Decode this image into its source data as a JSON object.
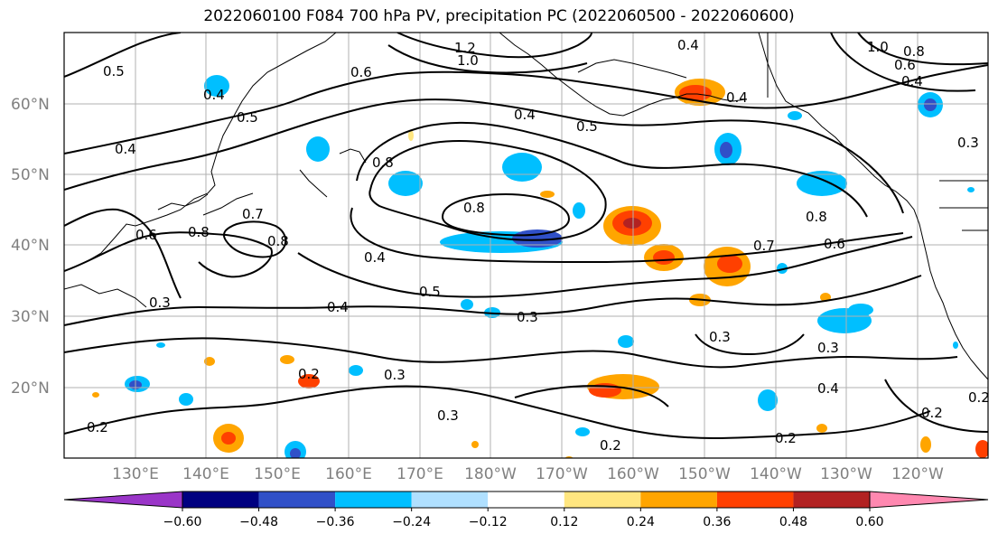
{
  "title": "2022060100 F084 700 hPa PV, precipitation PC (2022060500 - 2022060600)",
  "lat_labels": [
    "60°N",
    "50°N",
    "40°N",
    "30°N",
    "20°N"
  ],
  "lon_labels": [
    "130°E",
    "140°E",
    "150°E",
    "160°E",
    "170°E",
    "180°W",
    "170°W",
    "160°W",
    "150°W",
    "140°W",
    "130°W",
    "120°W"
  ],
  "contour_labels": [
    "0.5",
    "0.4",
    "0.3",
    "0.5",
    "0.4",
    "0.6",
    "1.2",
    "1.0",
    "0.8",
    "0.4",
    "0.5",
    "0.4",
    "0.4",
    "1.0",
    "0.8",
    "0.6",
    "0.4",
    "0.3",
    "0.8",
    "0.8",
    "0.7",
    "0.6",
    "0.8",
    "0.4",
    "0.5",
    "0.7",
    "0.6",
    "0.8",
    "0.4",
    "0.3",
    "0.3",
    "0.3",
    "0.2",
    "0.3",
    "0.3",
    "0.2",
    "0.2",
    "0.4",
    "0.2",
    "0.2",
    "0.2"
  ],
  "colorbar": {
    "ticks": [
      "−0.60",
      "−0.48",
      "−0.36",
      "−0.24",
      "−0.12",
      "0.12",
      "0.24",
      "0.36",
      "0.48",
      "0.60"
    ],
    "colors": [
      "#9a35c8",
      "#000080",
      "#3050c8",
      "#00bfff",
      "#b0e0ff",
      "#ffffff",
      "#ffe680",
      "#ffa500",
      "#ff4000",
      "#b22222",
      "#ff88b0"
    ]
  }
}
